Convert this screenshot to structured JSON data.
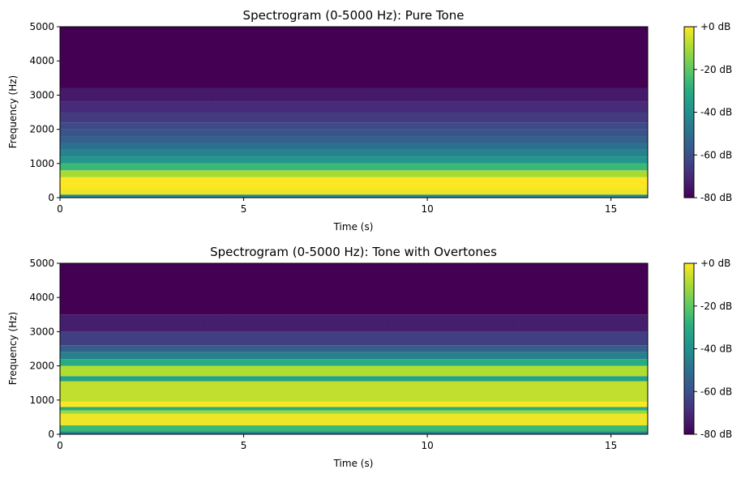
{
  "chart_data": [
    {
      "type": "heatmap",
      "title": "Spectrogram (0-5000 Hz): Pure Tone",
      "xlabel": "Time (s)",
      "ylabel": "Frequency (Hz)",
      "xlim": [
        0,
        16
      ],
      "ylim": [
        0,
        5000
      ],
      "xticks": [
        "0",
        "5",
        "10",
        "15"
      ],
      "yticks": [
        "0",
        "1000",
        "2000",
        "3000",
        "4000",
        "5000"
      ],
      "colorbar": {
        "cmap": "viridis",
        "range_db": [
          -80,
          0
        ],
        "ticks": [
          "+0 dB",
          "-20 dB",
          "-40 dB",
          "-60 dB",
          "-80 dB"
        ]
      },
      "bands": [
        {
          "f": [
            0,
            90
          ],
          "db": -43
        },
        {
          "f": [
            90,
            260
          ],
          "db": -2
        },
        {
          "f": [
            260,
            600
          ],
          "db": 0
        },
        {
          "f": [
            600,
            800
          ],
          "db": -10
        },
        {
          "f": [
            800,
            1000
          ],
          "db": -26
        },
        {
          "f": [
            1000,
            1200
          ],
          "db": -38
        },
        {
          "f": [
            1200,
            1400
          ],
          "db": -44
        },
        {
          "f": [
            1400,
            1600
          ],
          "db": -50
        },
        {
          "f": [
            1600,
            1800
          ],
          "db": -55
        },
        {
          "f": [
            1800,
            2000
          ],
          "db": -59
        },
        {
          "f": [
            2000,
            2200
          ],
          "db": -62
        },
        {
          "f": [
            2200,
            2500
          ],
          "db": -66
        },
        {
          "f": [
            2500,
            2800
          ],
          "db": -70
        },
        {
          "f": [
            2800,
            3200
          ],
          "db": -74
        },
        {
          "f": [
            3200,
            5000
          ],
          "db": -80
        }
      ]
    },
    {
      "type": "heatmap",
      "title": "Spectrogram (0-5000 Hz): Tone with Overtones",
      "xlabel": "Time (s)",
      "ylabel": "Frequency (Hz)",
      "xlim": [
        0,
        16
      ],
      "ylim": [
        0,
        5000
      ],
      "xticks": [
        "0",
        "5",
        "10",
        "15"
      ],
      "yticks": [
        "0",
        "1000",
        "2000",
        "3000",
        "4000",
        "5000"
      ],
      "colorbar": {
        "cmap": "viridis",
        "range_db": [
          -80,
          0
        ],
        "ticks": [
          "+0 dB",
          "-20 dB",
          "-40 dB",
          "-60 dB",
          "-80 dB"
        ]
      },
      "bands": [
        {
          "f": [
            0,
            90
          ],
          "db": -43
        },
        {
          "f": [
            90,
            260
          ],
          "db": -26
        },
        {
          "f": [
            260,
            600
          ],
          "db": -2
        },
        {
          "f": [
            600,
            700
          ],
          "db": -12
        },
        {
          "f": [
            700,
            800
          ],
          "db": -30
        },
        {
          "f": [
            800,
            950
          ],
          "db": 0
        },
        {
          "f": [
            950,
            1550
          ],
          "db": -7
        },
        {
          "f": [
            1550,
            1700
          ],
          "db": -34
        },
        {
          "f": [
            1700,
            2000
          ],
          "db": -9
        },
        {
          "f": [
            2000,
            2200
          ],
          "db": -30
        },
        {
          "f": [
            2200,
            2400
          ],
          "db": -45
        },
        {
          "f": [
            2400,
            2600
          ],
          "db": -55
        },
        {
          "f": [
            2600,
            3000
          ],
          "db": -65
        },
        {
          "f": [
            3000,
            3500
          ],
          "db": -73
        },
        {
          "f": [
            3500,
            5000
          ],
          "db": -80
        }
      ]
    }
  ]
}
